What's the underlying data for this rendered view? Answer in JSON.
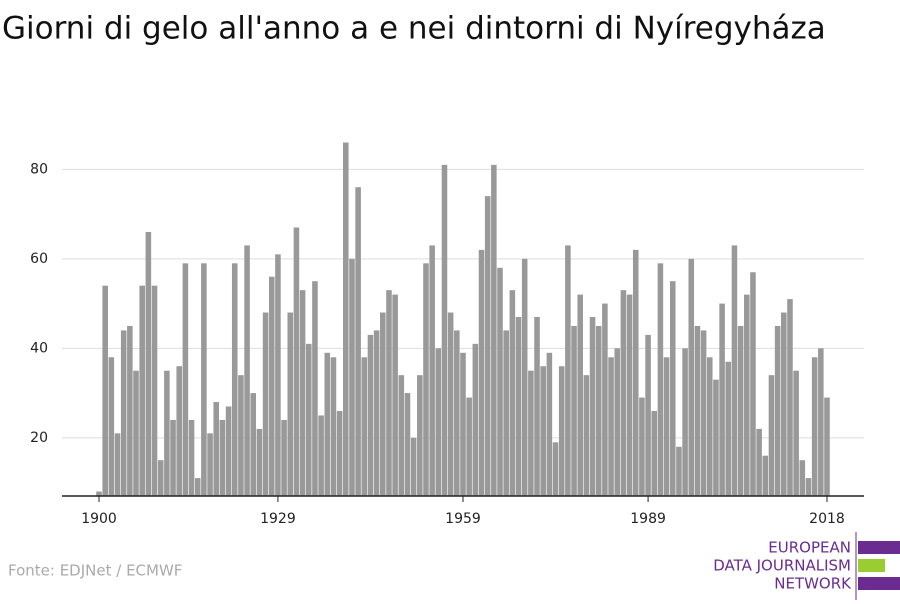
{
  "chart_data": {
    "type": "bar",
    "title": "Giorni di gelo all'anno a e nei dintorni di Nyíregyháza",
    "source": "Fonte: EDJNet / ECMWF",
    "logo": [
      "EUROPEAN",
      "DATA JOURNALISM",
      "NETWORK"
    ],
    "color": "#999999",
    "x": [
      1900,
      1901,
      1902,
      1903,
      1904,
      1905,
      1906,
      1907,
      1908,
      1909,
      1910,
      1911,
      1912,
      1913,
      1914,
      1915,
      1916,
      1917,
      1918,
      1919,
      1920,
      1921,
      1922,
      1923,
      1924,
      1925,
      1926,
      1927,
      1928,
      1929,
      1930,
      1931,
      1932,
      1933,
      1934,
      1935,
      1936,
      1937,
      1938,
      1939,
      1940,
      1941,
      1942,
      1943,
      1944,
      1945,
      1946,
      1947,
      1948,
      1949,
      1950,
      1951,
      1952,
      1953,
      1954,
      1955,
      1956,
      1957,
      1958,
      1959,
      1960,
      1961,
      1962,
      1963,
      1964,
      1965,
      1966,
      1967,
      1968,
      1969,
      1970,
      1971,
      1972,
      1973,
      1974,
      1975,
      1976,
      1977,
      1978,
      1979,
      1980,
      1981,
      1982,
      1983,
      1984,
      1985,
      1986,
      1987,
      1988,
      1989,
      1990,
      1991,
      1992,
      1993,
      1994,
      1995,
      1996,
      1997,
      1998,
      1999,
      2000,
      2001,
      2002,
      2003,
      2004,
      2005,
      2006,
      2007,
      2008,
      2009,
      2010,
      2011,
      2012,
      2013,
      2014,
      2015,
      2016,
      2017,
      2018
    ],
    "values": [
      8,
      54,
      38,
      21,
      44,
      45,
      35,
      54,
      66,
      54,
      15,
      35,
      24,
      36,
      59,
      24,
      11,
      59,
      21,
      28,
      24,
      27,
      59,
      34,
      63,
      30,
      22,
      48,
      56,
      61,
      24,
      48,
      67,
      53,
      41,
      55,
      25,
      39,
      38,
      26,
      86,
      60,
      76,
      38,
      43,
      44,
      48,
      53,
      52,
      34,
      30,
      20,
      34,
      59,
      63,
      40,
      81,
      48,
      44,
      39,
      29,
      41,
      62,
      74,
      81,
      58,
      44,
      53,
      47,
      60,
      35,
      47,
      36,
      39,
      19,
      36,
      63,
      45,
      52,
      34,
      47,
      45,
      50,
      38,
      40,
      53,
      52,
      62,
      29,
      43,
      26,
      59,
      38,
      55,
      18,
      40,
      60,
      45,
      44,
      38,
      33,
      50,
      37,
      63,
      45,
      52,
      57,
      22,
      16,
      34,
      45,
      48,
      51,
      35,
      15,
      11,
      38,
      40,
      29
    ],
    "xlim": [
      1894,
      2024
    ],
    "xticks": [
      1900,
      1929,
      1959,
      1989,
      2018
    ],
    "ylim": [
      7,
      87
    ],
    "yticks": [
      20,
      40,
      60,
      80
    ],
    "grid": true
  }
}
